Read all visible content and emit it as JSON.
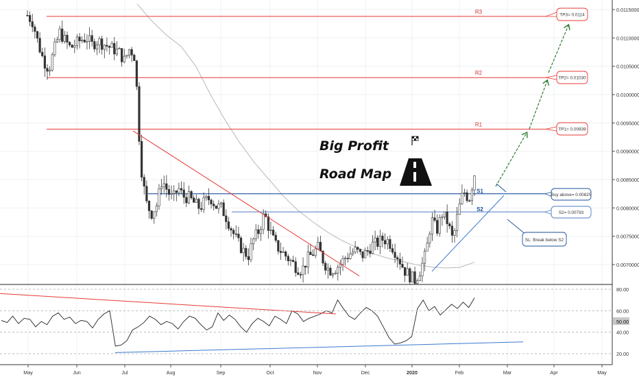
{
  "chart_data": {
    "type": "candlestick",
    "price_axis": {
      "ticks": [
        "0.01150000",
        "0.01100000",
        "0.01050000",
        "0.01000000",
        "0.00950000",
        "0.00900000",
        "0.00850000",
        "0.00800000",
        "0.00750000",
        "0.00700000"
      ],
      "range": [
        0.00675,
        0.0118
      ]
    },
    "oscillator_axis": {
      "ticks": [
        "80.00",
        "60.00",
        "40.00",
        "20.00"
      ],
      "current_label": "50.00",
      "range": [
        10,
        82
      ]
    },
    "time_axis": [
      "May",
      "Jun",
      "Jul",
      "Aug",
      "Sep",
      "Oct",
      "Nov",
      "Dec",
      "2020",
      "Feb",
      "Mar",
      "Apr",
      "May"
    ],
    "resistance_levels": [
      {
        "label": "R3",
        "price": 0.01138,
        "callout": "TP3= 0.0114"
      },
      {
        "label": "R2",
        "price": 0.0103,
        "callout": "TP2= 0.01030"
      },
      {
        "label": "R1",
        "price": 0.00939,
        "callout": "TP1= 0.00939"
      }
    ],
    "support_levels": [
      {
        "label": "S1",
        "price": 0.00825,
        "callout": "Buy above= 0.00825"
      },
      {
        "label": "S2",
        "price": 0.00793,
        "callout": "S2= 0.00793"
      }
    ],
    "stop_loss": {
      "callout": "SL: Break below S2"
    },
    "price_series": [
      0.0114,
      0.01128,
      0.0109,
      0.0106,
      0.01045,
      0.0108,
      0.0111,
      0.01095,
      0.01082,
      0.0109,
      0.01097,
      0.011,
      0.01088,
      0.01095,
      0.0109,
      0.01085,
      0.0108,
      0.01075,
      0.0106,
      0.01082,
      0.01065,
      0.0088,
      0.0081,
      0.0079,
      0.00805,
      0.0085,
      0.0083,
      0.00815,
      0.00835,
      0.0082,
      0.00818,
      0.00808,
      0.008,
      0.00812,
      0.00818,
      0.00803,
      0.008,
      0.00782,
      0.0076,
      0.0074,
      0.00725,
      0.00715,
      0.00745,
      0.0076,
      0.0079,
      0.0076,
      0.00735,
      0.00725,
      0.00715,
      0.00705,
      0.00695,
      0.0069,
      0.0071,
      0.0072,
      0.0073,
      0.00705,
      0.0069,
      0.00692,
      0.007,
      0.00712,
      0.0072,
      0.00725,
      0.00715,
      0.00722,
      0.00735,
      0.00738,
      0.00745,
      0.00742,
      0.00728,
      0.0071,
      0.0069,
      0.0068,
      0.00672,
      0.00692,
      0.0072,
      0.0078,
      0.0076,
      0.0079,
      0.00775,
      0.00742,
      0.00795,
      0.0083,
      0.00815,
      0.0086
    ],
    "ma_series": [
      0.0116,
      0.0113,
      0.01105,
      0.01085,
      0.0105,
      0.01,
      0.00955,
      0.00915,
      0.0088,
      0.0085,
      0.0082,
      0.00795,
      0.00775,
      0.00757,
      0.00742,
      0.0073,
      0.0072,
      0.00712,
      0.00706,
      0.007,
      0.00696,
      0.00694,
      0.00695,
      0.00704
    ],
    "oscillator_series": [
      51,
      49,
      55,
      48,
      53,
      52,
      45,
      50,
      47,
      55,
      58,
      52,
      54,
      48,
      51,
      50,
      44,
      52,
      57,
      60,
      27,
      28,
      32,
      42,
      45,
      49,
      55,
      52,
      47,
      50,
      48,
      43,
      50,
      55,
      53,
      47,
      42,
      45,
      58,
      51,
      56,
      52,
      45,
      40,
      48,
      53,
      50,
      46,
      55,
      52,
      48,
      60,
      57,
      50,
      53,
      55,
      57,
      60,
      58,
      70,
      62,
      55,
      52,
      58,
      63,
      60,
      55,
      45,
      35,
      29,
      30,
      32,
      36,
      62,
      70,
      60,
      64,
      56,
      61,
      66,
      62,
      68,
      63,
      72
    ],
    "annotations": {
      "title_line1": "Big Profit",
      "title_line2": "Road Map"
    }
  }
}
